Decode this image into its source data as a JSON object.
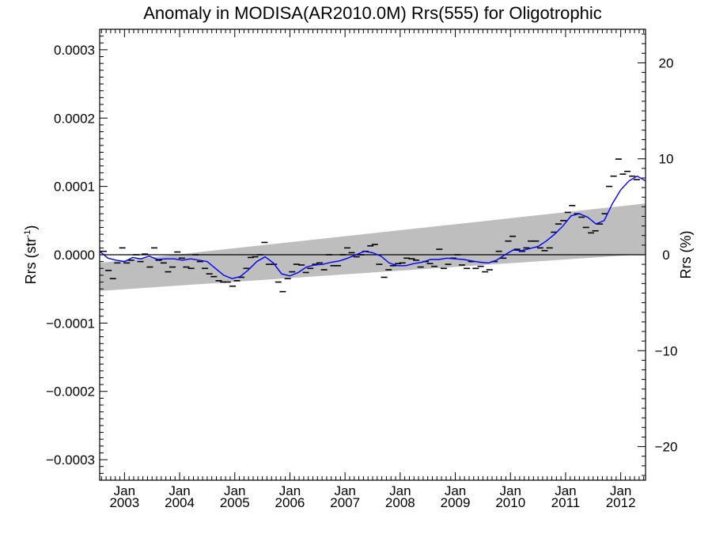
{
  "chart_data": {
    "type": "line",
    "title": "Anomaly in MODISA(AR2010.0M) Rrs(555) for Oligotrophic",
    "ylabel": "Rrs (str",
    "ylabel_sup": "-1",
    "ylabel_close": ")",
    "y2label": "Rrs (%)",
    "xlim": [
      2002.55,
      2012.45
    ],
    "ylim": [
      -0.00033,
      0.00033
    ],
    "y2lim": [
      -23.5,
      23.5
    ],
    "x_ticks": [
      {
        "x": 2003.0,
        "month": "Jan",
        "year": "2003"
      },
      {
        "x": 2004.0,
        "month": "Jan",
        "year": "2004"
      },
      {
        "x": 2005.0,
        "month": "Jan",
        "year": "2005"
      },
      {
        "x": 2006.0,
        "month": "Jan",
        "year": "2006"
      },
      {
        "x": 2007.0,
        "month": "Jan",
        "year": "2007"
      },
      {
        "x": 2008.0,
        "month": "Jan",
        "year": "2008"
      },
      {
        "x": 2009.0,
        "month": "Jan",
        "year": "2009"
      },
      {
        "x": 2010.0,
        "month": "Jan",
        "year": "2010"
      },
      {
        "x": 2011.0,
        "month": "Jan",
        "year": "2011"
      },
      {
        "x": 2012.0,
        "month": "Jan",
        "year": "2012"
      }
    ],
    "y_ticks": [
      {
        "value": 0.0003,
        "label": "0.0003"
      },
      {
        "value": 0.0002,
        "label": "0.0002"
      },
      {
        "value": 0.0001,
        "label": "0.0001"
      },
      {
        "value": 0.0,
        "label": "0.0000"
      },
      {
        "value": -0.0001,
        "label": "−0.0001"
      },
      {
        "value": -0.0002,
        "label": "−0.0002"
      },
      {
        "value": -0.0003,
        "label": "−0.0003"
      }
    ],
    "y2_ticks": [
      {
        "value": 20,
        "label": "20"
      },
      {
        "value": 10,
        "label": "10"
      },
      {
        "value": 0,
        "label": "0"
      },
      {
        "value": -10,
        "label": "−10"
      },
      {
        "value": -20,
        "label": "−20"
      }
    ],
    "zero_line": 0.0,
    "band": {
      "x": [
        2002.55,
        2012.45
      ],
      "upper": [
        -1.2e-05,
        7.5e-05
      ],
      "lower": [
        -5.3e-05,
        1e-06
      ],
      "color": "#bebebe"
    },
    "series": [
      {
        "style": "markers",
        "color": "#000000",
        "x": [
          2002.62,
          2002.71,
          2002.79,
          2002.87,
          2002.96,
          2003.04,
          2003.12,
          2003.21,
          2003.29,
          2003.37,
          2003.46,
          2003.54,
          2003.62,
          2003.71,
          2003.79,
          2003.87,
          2003.96,
          2004.04,
          2004.12,
          2004.21,
          2004.29,
          2004.37,
          2004.46,
          2004.54,
          2004.62,
          2004.71,
          2004.79,
          2004.87,
          2004.96,
          2005.04,
          2005.12,
          2005.21,
          2005.29,
          2005.37,
          2005.46,
          2005.54,
          2005.62,
          2005.71,
          2005.79,
          2005.87,
          2005.96,
          2006.04,
          2006.12,
          2006.21,
          2006.29,
          2006.37,
          2006.46,
          2006.54,
          2006.62,
          2006.71,
          2006.79,
          2006.87,
          2006.96,
          2007.04,
          2007.12,
          2007.21,
          2007.29,
          2007.37,
          2007.46,
          2007.54,
          2007.62,
          2007.71,
          2007.79,
          2007.87,
          2007.96,
          2008.04,
          2008.12,
          2008.21,
          2008.29,
          2008.37,
          2008.46,
          2008.54,
          2008.62,
          2008.71,
          2008.79,
          2008.87,
          2008.96,
          2009.04,
          2009.12,
          2009.21,
          2009.29,
          2009.37,
          2009.46,
          2009.54,
          2009.62,
          2009.71,
          2009.79,
          2009.87,
          2009.96,
          2010.04,
          2010.12,
          2010.21,
          2010.29,
          2010.37,
          2010.46,
          2010.54,
          2010.62,
          2010.71,
          2010.79,
          2010.87,
          2010.96,
          2011.04,
          2011.12,
          2011.21,
          2011.29,
          2011.37,
          2011.46,
          2011.54,
          2011.62,
          2011.71,
          2011.79,
          2011.87,
          2011.96,
          2012.04,
          2012.12,
          2012.21,
          2012.29
        ],
        "y": [
          5e-06,
          -2.3e-05,
          -3.5e-05,
          -1.2e-05,
          1e-05,
          -1.2e-05,
          -8e-06,
          0.0,
          -1e-05,
          1e-06,
          -1.8e-05,
          1e-05,
          -8e-06,
          -1.2e-05,
          -2.5e-05,
          -1.8e-05,
          4e-06,
          -5e-06,
          -1.8e-05,
          -2e-05,
          0.0,
          -1e-05,
          -2e-05,
          -2.8e-05,
          -3.2e-05,
          -3.8e-05,
          -4e-05,
          -4e-05,
          -4.6e-05,
          -3.8e-05,
          -3.3e-05,
          -2e-05,
          -4e-06,
          -3e-06,
          0.0,
          1.8e-05,
          -1.4e-05,
          -1.4e-05,
          -4e-05,
          -5.4e-05,
          -3.5e-05,
          -2.5e-05,
          -1.4e-05,
          -1.5e-05,
          -2.6e-05,
          -2e-05,
          -1.4e-05,
          -1.2e-05,
          -2.2e-05,
          0.0,
          -1.6e-05,
          -1.6e-05,
          0.0,
          1e-05,
          3e-06,
          -3e-06,
          0.0,
          5e-06,
          1.3e-05,
          1.5e-05,
          -1.4e-05,
          -3.3e-05,
          -2.2e-05,
          -1.6e-05,
          -1.3e-05,
          -1.2e-05,
          -5e-06,
          -6e-06,
          -8e-06,
          -1.8e-05,
          -1e-05,
          -1.3e-05,
          -1.7e-05,
          8e-06,
          -2e-05,
          -1.4e-05,
          -5e-06,
          0.0,
          -1.5e-05,
          -2e-05,
          -1e-05,
          -2e-05,
          -1.7e-05,
          -2.5e-05,
          -2.2e-05,
          -1e-05,
          5e-06,
          -5e-06,
          2e-05,
          2.7e-05,
          8e-06,
          5e-06,
          1e-05,
          2e-05,
          2e-05,
          1e-05,
          6e-06,
          1e-05,
          3.3e-05,
          4.5e-05,
          5e-05,
          6.2e-05,
          7.2e-05,
          6e-05,
          5.5e-05,
          4e-05,
          3.2e-05,
          3.5e-05,
          4.5e-05,
          6e-05,
          0.0001,
          0.000115,
          0.00014,
          0.000118,
          0.000122,
          0.000115,
          0.00011
        ]
      },
      {
        "style": "line",
        "color": "#0000ff",
        "x": [
          2002.55,
          2002.7,
          2002.85,
          2003.0,
          2003.15,
          2003.3,
          2003.45,
          2003.6,
          2003.75,
          2003.9,
          2004.05,
          2004.2,
          2004.35,
          2004.5,
          2004.65,
          2004.8,
          2004.95,
          2005.1,
          2005.25,
          2005.4,
          2005.55,
          2005.7,
          2005.85,
          2006.0,
          2006.15,
          2006.3,
          2006.45,
          2006.6,
          2006.75,
          2006.9,
          2007.05,
          2007.2,
          2007.35,
          2007.5,
          2007.65,
          2007.8,
          2007.95,
          2008.1,
          2008.25,
          2008.4,
          2008.55,
          2008.7,
          2008.85,
          2009.0,
          2009.15,
          2009.3,
          2009.45,
          2009.6,
          2009.75,
          2009.9,
          2010.05,
          2010.2,
          2010.35,
          2010.5,
          2010.65,
          2010.8,
          2010.95,
          2011.1,
          2011.25,
          2011.4,
          2011.55,
          2011.7,
          2011.85,
          2012.0,
          2012.15,
          2012.3,
          2012.45
        ],
        "y": [
          5e-06,
          -5e-06,
          -8e-06,
          -1e-05,
          -4e-06,
          -6e-06,
          -2e-06,
          -7e-06,
          -6e-06,
          -6e-06,
          -8e-06,
          -6e-06,
          -8e-06,
          -1e-05,
          -2e-05,
          -3e-05,
          -3.5e-05,
          -3.2e-05,
          -2.2e-05,
          -1e-05,
          -3e-06,
          -1.2e-05,
          -2.8e-05,
          -3.1e-05,
          -2.6e-05,
          -1.8e-05,
          -1.5e-05,
          -1.4e-05,
          -1.1e-05,
          -9e-06,
          -5e-06,
          0.0,
          5e-06,
          3e-06,
          -2e-06,
          -1.2e-05,
          -1.6e-05,
          -1.6e-05,
          -1.3e-05,
          -1.1e-05,
          -7e-06,
          -7e-06,
          -5e-06,
          -6e-06,
          -7e-06,
          -9e-06,
          -1.1e-05,
          -1.2e-05,
          -8e-06,
          0.0,
          7e-06,
          6e-06,
          9e-06,
          1.2e-05,
          2e-05,
          3e-05,
          4.2e-05,
          5.7e-05,
          6e-05,
          5.5e-05,
          4.5e-05,
          5e-05,
          7.5e-05,
          9.5e-05,
          0.000108,
          0.000115,
          0.000108
        ]
      }
    ]
  }
}
